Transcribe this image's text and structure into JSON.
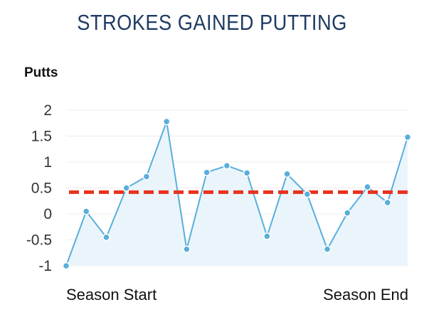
{
  "chart_data": {
    "type": "line",
    "title": "STROKES GAINED PUTTING",
    "ylabel": "Putts",
    "xlabel": "",
    "x_labels": [
      "Season Start",
      "Season End"
    ],
    "yticks": [
      "2",
      "1.5",
      "1",
      "0.5",
      "0",
      "-0.5",
      "-1"
    ],
    "ylim": [
      -1,
      2
    ],
    "grid": true,
    "series": [
      {
        "values": [
          -1.0,
          0.05,
          -0.45,
          0.5,
          0.72,
          1.78,
          -0.68,
          0.8,
          0.93,
          0.79,
          -0.43,
          0.77,
          0.38,
          -0.68,
          0.02,
          0.52,
          0.22,
          1.48
        ],
        "color": "#5aaedc",
        "fill": "#eaf5fb"
      }
    ],
    "reference_line": {
      "value": 0.42,
      "color": "#e8321e",
      "style": "dashed"
    }
  }
}
